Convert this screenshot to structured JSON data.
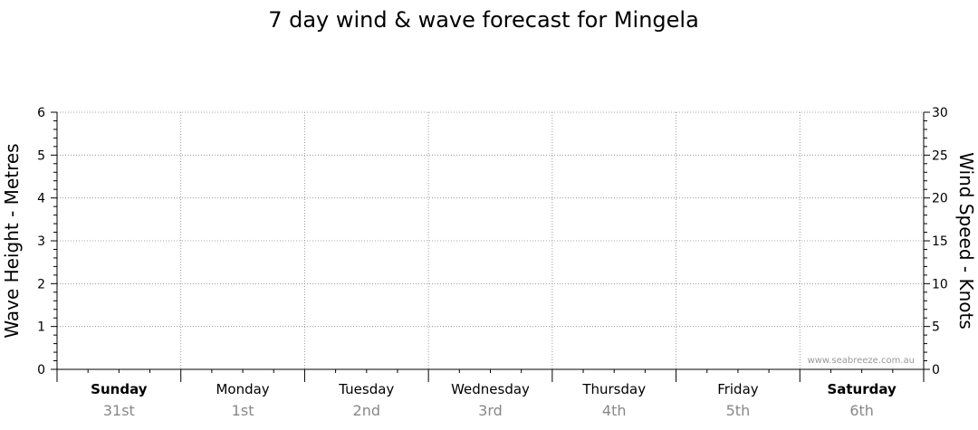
{
  "chart_data": {
    "type": "line",
    "title": "7 day wind & wave forecast for Mingela",
    "ylabel_left": "Wave Height - Metres",
    "ylabel_right": "Wind Speed - Knots",
    "ylim_left": [
      0,
      6
    ],
    "ylim_right": [
      0,
      30
    ],
    "yticks_left": [
      0,
      1,
      2,
      3,
      4,
      5,
      6
    ],
    "yticks_right": [
      0,
      5,
      10,
      15,
      20,
      25,
      30
    ],
    "grid": true,
    "days": [
      {
        "name": "Sunday",
        "date": "31st",
        "bold": true
      },
      {
        "name": "Monday",
        "date": "1st",
        "bold": false
      },
      {
        "name": "Tuesday",
        "date": "2nd",
        "bold": false
      },
      {
        "name": "Wednesday",
        "date": "3rd",
        "bold": false
      },
      {
        "name": "Thursday",
        "date": "4th",
        "bold": false
      },
      {
        "name": "Friday",
        "date": "5th",
        "bold": false
      },
      {
        "name": "Saturday",
        "date": "6th",
        "bold": true
      }
    ],
    "series": [],
    "watermark": "www.seabreeze.com.au"
  },
  "colors": {
    "axis": "#000000",
    "grid": "#888888",
    "date_text": "#888888",
    "watermark": "#999999",
    "background": "#ffffff"
  }
}
